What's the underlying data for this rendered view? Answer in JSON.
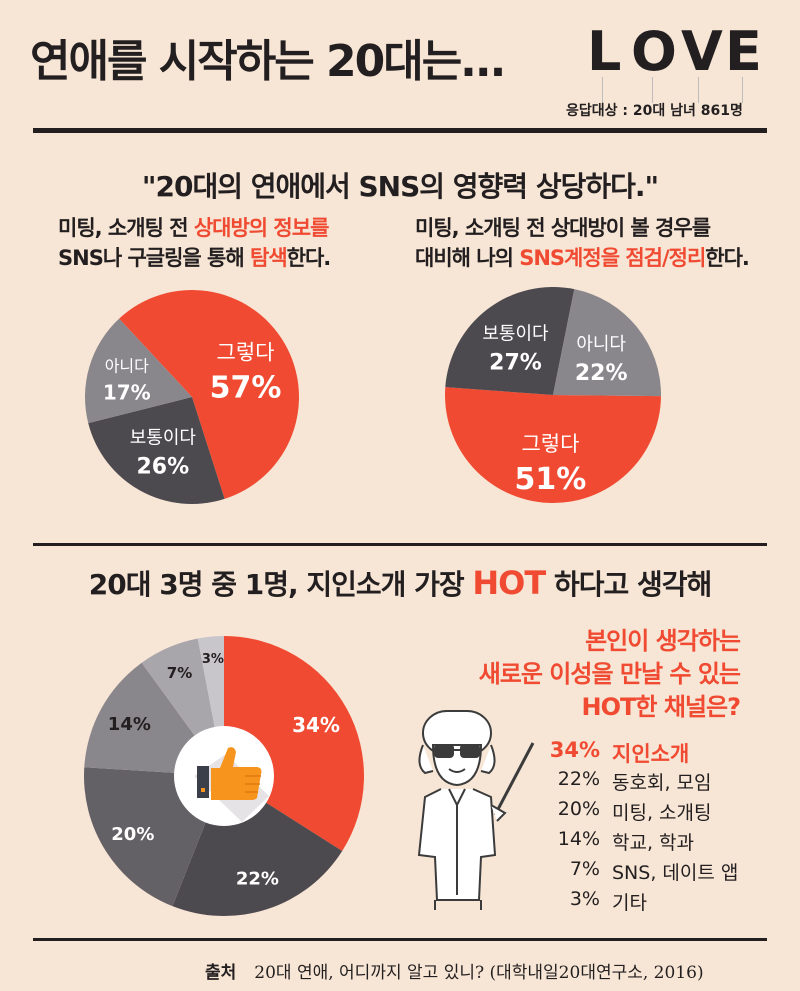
{
  "header": {
    "title": "연애를 시작하는 20대는...",
    "logo_letters": [
      {
        "char": "L",
        "color": "#f04b32"
      },
      {
        "char": "O",
        "color": "#f04b32"
      },
      {
        "char": "V",
        "color": "#f7941d"
      },
      {
        "char": "E",
        "color": "#f7941d"
      }
    ],
    "respondents": "응답대상 : 20대 남녀 861명"
  },
  "section1": {
    "headline": "\"20대의 연애에서 SNS의 영향력 상당하다.\"",
    "left_desc": {
      "line1_pre": "미팅, 소개팅 전 ",
      "line1_hl": "상대방의 정보를",
      "line2_pre": "SNS나 구글링을 통해 ",
      "line2_hl": "탐색",
      "line2_post": "한다."
    },
    "right_desc": {
      "line1": "미팅, 소개팅 전 상대방이 볼 경우를",
      "line2_pre": "대비해 나의 ",
      "line2_hl": "SNS계정을 점검/정리",
      "line2_post": "한다."
    }
  },
  "section2": {
    "headline_pre": "20대 3명 중 1명, 지인소개 가장 ",
    "headline_hot": "HOT",
    "headline_post": " 하다고 생각해",
    "question": [
      "본인이 생각하는",
      "새로운 이성을 만날 수 있는",
      "HOT한 채널은?"
    ],
    "legend": [
      {
        "pct": "34%",
        "label": "지인소개"
      },
      {
        "pct": "22%",
        "label": "동호회, 모임"
      },
      {
        "pct": "20%",
        "label": "미팅, 소개팅"
      },
      {
        "pct": "14%",
        "label": "학교, 학과"
      },
      {
        "pct": "7%",
        "label": "SNS, 데이트 앱"
      },
      {
        "pct": "3%",
        "label": "기타"
      }
    ]
  },
  "source": {
    "label": "출처",
    "text": "20대 연애, 어디까지 알고 있니? (대학내일20대연구소, 2016)"
  },
  "colors": {
    "accent": "#f04b32",
    "dark": "#4d4a4f",
    "gray": "#8a878c",
    "background": "#f7e6d5"
  },
  "icons": [
    "thumbs-up-icon",
    "professor-illustration"
  ],
  "chart_data": [
    {
      "type": "pie",
      "slices": [
        {
          "label": "그렇다",
          "value": 57,
          "text": "57%",
          "color": "#f04b32"
        },
        {
          "label": "보통이다",
          "value": 26,
          "text": "26%",
          "color": "#4d4a4f"
        },
        {
          "label": "아니다",
          "value": 17,
          "text": "17%",
          "color": "#8a878c"
        }
      ]
    },
    {
      "type": "pie",
      "slices": [
        {
          "label": "그렇다",
          "value": 51,
          "text": "51%",
          "color": "#f04b32"
        },
        {
          "label": "보통이다",
          "value": 27,
          "text": "27%",
          "color": "#4d4a4f"
        },
        {
          "label": "아니다",
          "value": 22,
          "text": "22%",
          "color": "#8a878c"
        }
      ]
    },
    {
      "type": "pie",
      "slices": [
        {
          "label": "지인소개",
          "value": 34,
          "text": "34%",
          "color": "#f04b32"
        },
        {
          "label": "동호회, 모임",
          "value": 22,
          "text": "22%",
          "color": "#4d4a4f"
        },
        {
          "label": "미팅, 소개팅",
          "value": 20,
          "text": "20%",
          "color": "#646166"
        },
        {
          "label": "학교, 학과",
          "value": 14,
          "text": "14%",
          "color": "#8a878c"
        },
        {
          "label": "SNS, 데이트 앱",
          "value": 7,
          "text": "7%",
          "color": "#a9a6ab"
        },
        {
          "label": "기타",
          "value": 3,
          "text": "3%",
          "color": "#c9c6cb"
        }
      ]
    }
  ]
}
